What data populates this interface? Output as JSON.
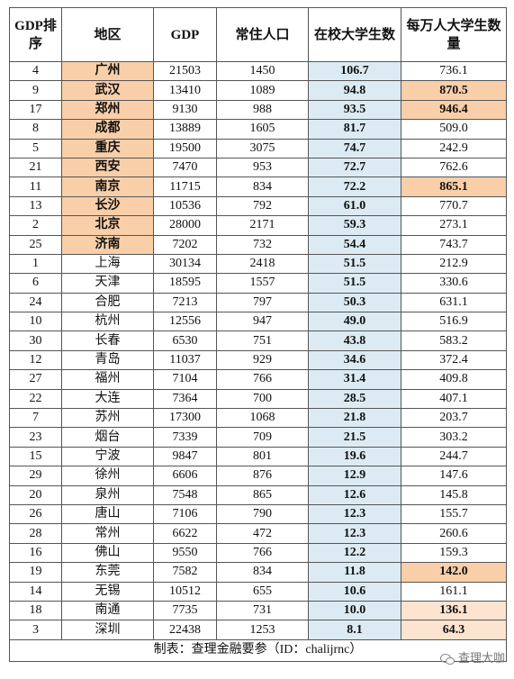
{
  "table": {
    "header": [
      "GDP排序",
      "地区",
      "GDP",
      "常住人口",
      "在校大学生数",
      "每万人大学生数量"
    ],
    "rows": [
      [
        "4",
        "广州",
        "21503",
        "1450",
        "106.7",
        "736.1"
      ],
      [
        "9",
        "武汉",
        "13410",
        "1089",
        "94.8",
        "870.5"
      ],
      [
        "17",
        "郑州",
        "9130",
        "988",
        "93.5",
        "946.4"
      ],
      [
        "8",
        "成都",
        "13889",
        "1605",
        "81.7",
        "509.0"
      ],
      [
        "5",
        "重庆",
        "19500",
        "3075",
        "74.7",
        "242.9"
      ],
      [
        "21",
        "西安",
        "7470",
        "953",
        "72.7",
        "762.6"
      ],
      [
        "11",
        "南京",
        "11715",
        "834",
        "72.2",
        "865.1"
      ],
      [
        "13",
        "长沙",
        "10536",
        "792",
        "61.0",
        "770.7"
      ],
      [
        "2",
        "北京",
        "28000",
        "2171",
        "59.3",
        "273.1"
      ],
      [
        "25",
        "济南",
        "7202",
        "732",
        "54.4",
        "743.7"
      ],
      [
        "1",
        "上海",
        "30134",
        "2418",
        "51.5",
        "212.9"
      ],
      [
        "6",
        "天津",
        "18595",
        "1557",
        "51.5",
        "330.6"
      ],
      [
        "24",
        "合肥",
        "7213",
        "797",
        "50.3",
        "631.1"
      ],
      [
        "10",
        "杭州",
        "12556",
        "947",
        "49.0",
        "516.9"
      ],
      [
        "30",
        "长春",
        "6530",
        "751",
        "43.8",
        "583.2"
      ],
      [
        "12",
        "青岛",
        "11037",
        "929",
        "34.6",
        "372.4"
      ],
      [
        "27",
        "福州",
        "7104",
        "766",
        "31.4",
        "409.8"
      ],
      [
        "22",
        "大连",
        "7364",
        "700",
        "28.5",
        "407.1"
      ],
      [
        "7",
        "苏州",
        "17300",
        "1068",
        "21.8",
        "203.7"
      ],
      [
        "23",
        "烟台",
        "7339",
        "709",
        "21.5",
        "303.2"
      ],
      [
        "15",
        "宁波",
        "9847",
        "801",
        "19.6",
        "244.7"
      ],
      [
        "29",
        "徐州",
        "6606",
        "876",
        "12.9",
        "147.6"
      ],
      [
        "20",
        "泉州",
        "7548",
        "865",
        "12.6",
        "145.8"
      ],
      [
        "26",
        "唐山",
        "7106",
        "790",
        "12.3",
        "155.7"
      ],
      [
        "28",
        "常州",
        "6622",
        "472",
        "12.3",
        "260.6"
      ],
      [
        "16",
        "佛山",
        "9550",
        "766",
        "12.2",
        "159.3"
      ],
      [
        "19",
        "东莞",
        "7582",
        "834",
        "11.8",
        "142.0"
      ],
      [
        "14",
        "无锡",
        "10512",
        "655",
        "10.6",
        "161.1"
      ],
      [
        "18",
        "南通",
        "7735",
        "731",
        "10.0",
        "136.1"
      ],
      [
        "3",
        "深圳",
        "22438",
        "1253",
        "8.1",
        "64.3"
      ]
    ],
    "footer": "制表：查理金融要参（ID：chalijrnc）"
  },
  "watermark": "查理大咖"
}
